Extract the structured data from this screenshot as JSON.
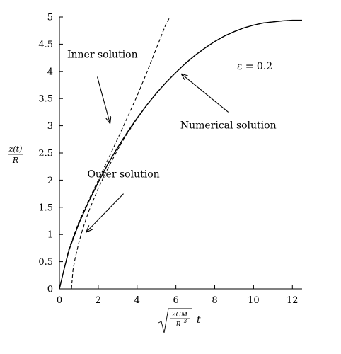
{
  "chart_data": {
    "type": "line",
    "title": "",
    "xlabel": "√(2GM/R³) t",
    "ylabel": "z(t)/R",
    "xlim": [
      0,
      12.5
    ],
    "ylim": [
      0,
      5
    ],
    "x_ticks": [
      0,
      2,
      4,
      6,
      8,
      10,
      12
    ],
    "y_ticks": [
      0,
      0.5,
      1,
      1.5,
      2,
      2.5,
      3,
      3.5,
      4,
      4.5,
      5
    ],
    "grid": false,
    "legend": "none",
    "parameter_label": "ε = 0.2",
    "series": [
      {
        "name": "Numerical solution",
        "style": "solid",
        "x": [
          0,
          0.25,
          0.5,
          1,
          1.5,
          2,
          2.5,
          3,
          3.5,
          4,
          4.5,
          5,
          5.5,
          6,
          6.5,
          7,
          7.5,
          8,
          8.5,
          9,
          9.5,
          10,
          10.5,
          11,
          11.5,
          12,
          12.5
        ],
        "y": [
          0,
          0.38,
          0.72,
          1.2,
          1.6,
          1.96,
          2.3,
          2.6,
          2.88,
          3.14,
          3.38,
          3.6,
          3.8,
          3.98,
          4.15,
          4.3,
          4.43,
          4.55,
          4.65,
          4.73,
          4.8,
          4.85,
          4.89,
          4.91,
          4.93,
          4.94,
          4.94
        ]
      },
      {
        "name": "Inner solution",
        "style": "dashed",
        "x": [
          0,
          0.5,
          1,
          1.5,
          2,
          2.5,
          3,
          3.5,
          4,
          4.5,
          5,
          5.5,
          5.7
        ],
        "y": [
          0,
          0.75,
          1.23,
          1.63,
          2.0,
          2.38,
          2.76,
          3.15,
          3.55,
          3.98,
          4.43,
          4.88,
          5.0
        ]
      },
      {
        "name": "Outer solution",
        "style": "dashed",
        "x": [
          0.62,
          0.7,
          0.8,
          1,
          1.2,
          1.5,
          2,
          2.5,
          3,
          3.5,
          4,
          4.5,
          5,
          5.5,
          6,
          6.5,
          7,
          7.5,
          8,
          8.5,
          9,
          9.5,
          10,
          10.5,
          11,
          11.5,
          12,
          12.5
        ],
        "y": [
          0,
          0.35,
          0.55,
          0.85,
          1.1,
          1.42,
          1.85,
          2.22,
          2.56,
          2.86,
          3.13,
          3.38,
          3.6,
          3.8,
          3.98,
          4.15,
          4.3,
          4.43,
          4.55,
          4.65,
          4.73,
          4.8,
          4.85,
          4.89,
          4.91,
          4.93,
          4.94,
          4.94
        ]
      }
    ],
    "annotations": [
      {
        "text": "Inner solution",
        "text_at": [
          0.4,
          4.25
        ],
        "arrow_from": [
          1.95,
          3.9
        ],
        "arrow_to": [
          2.6,
          3.05
        ]
      },
      {
        "text": "Numerical solution",
        "text_at": [
          8.7,
          2.95
        ],
        "arrow_from": [
          8.7,
          3.25
        ],
        "arrow_to": [
          6.3,
          3.95
        ]
      },
      {
        "text": "Outer solution",
        "text_at": [
          3.3,
          2.05
        ],
        "arrow_from": [
          3.3,
          1.75
        ],
        "arrow_to": [
          1.4,
          1.05
        ]
      }
    ]
  }
}
